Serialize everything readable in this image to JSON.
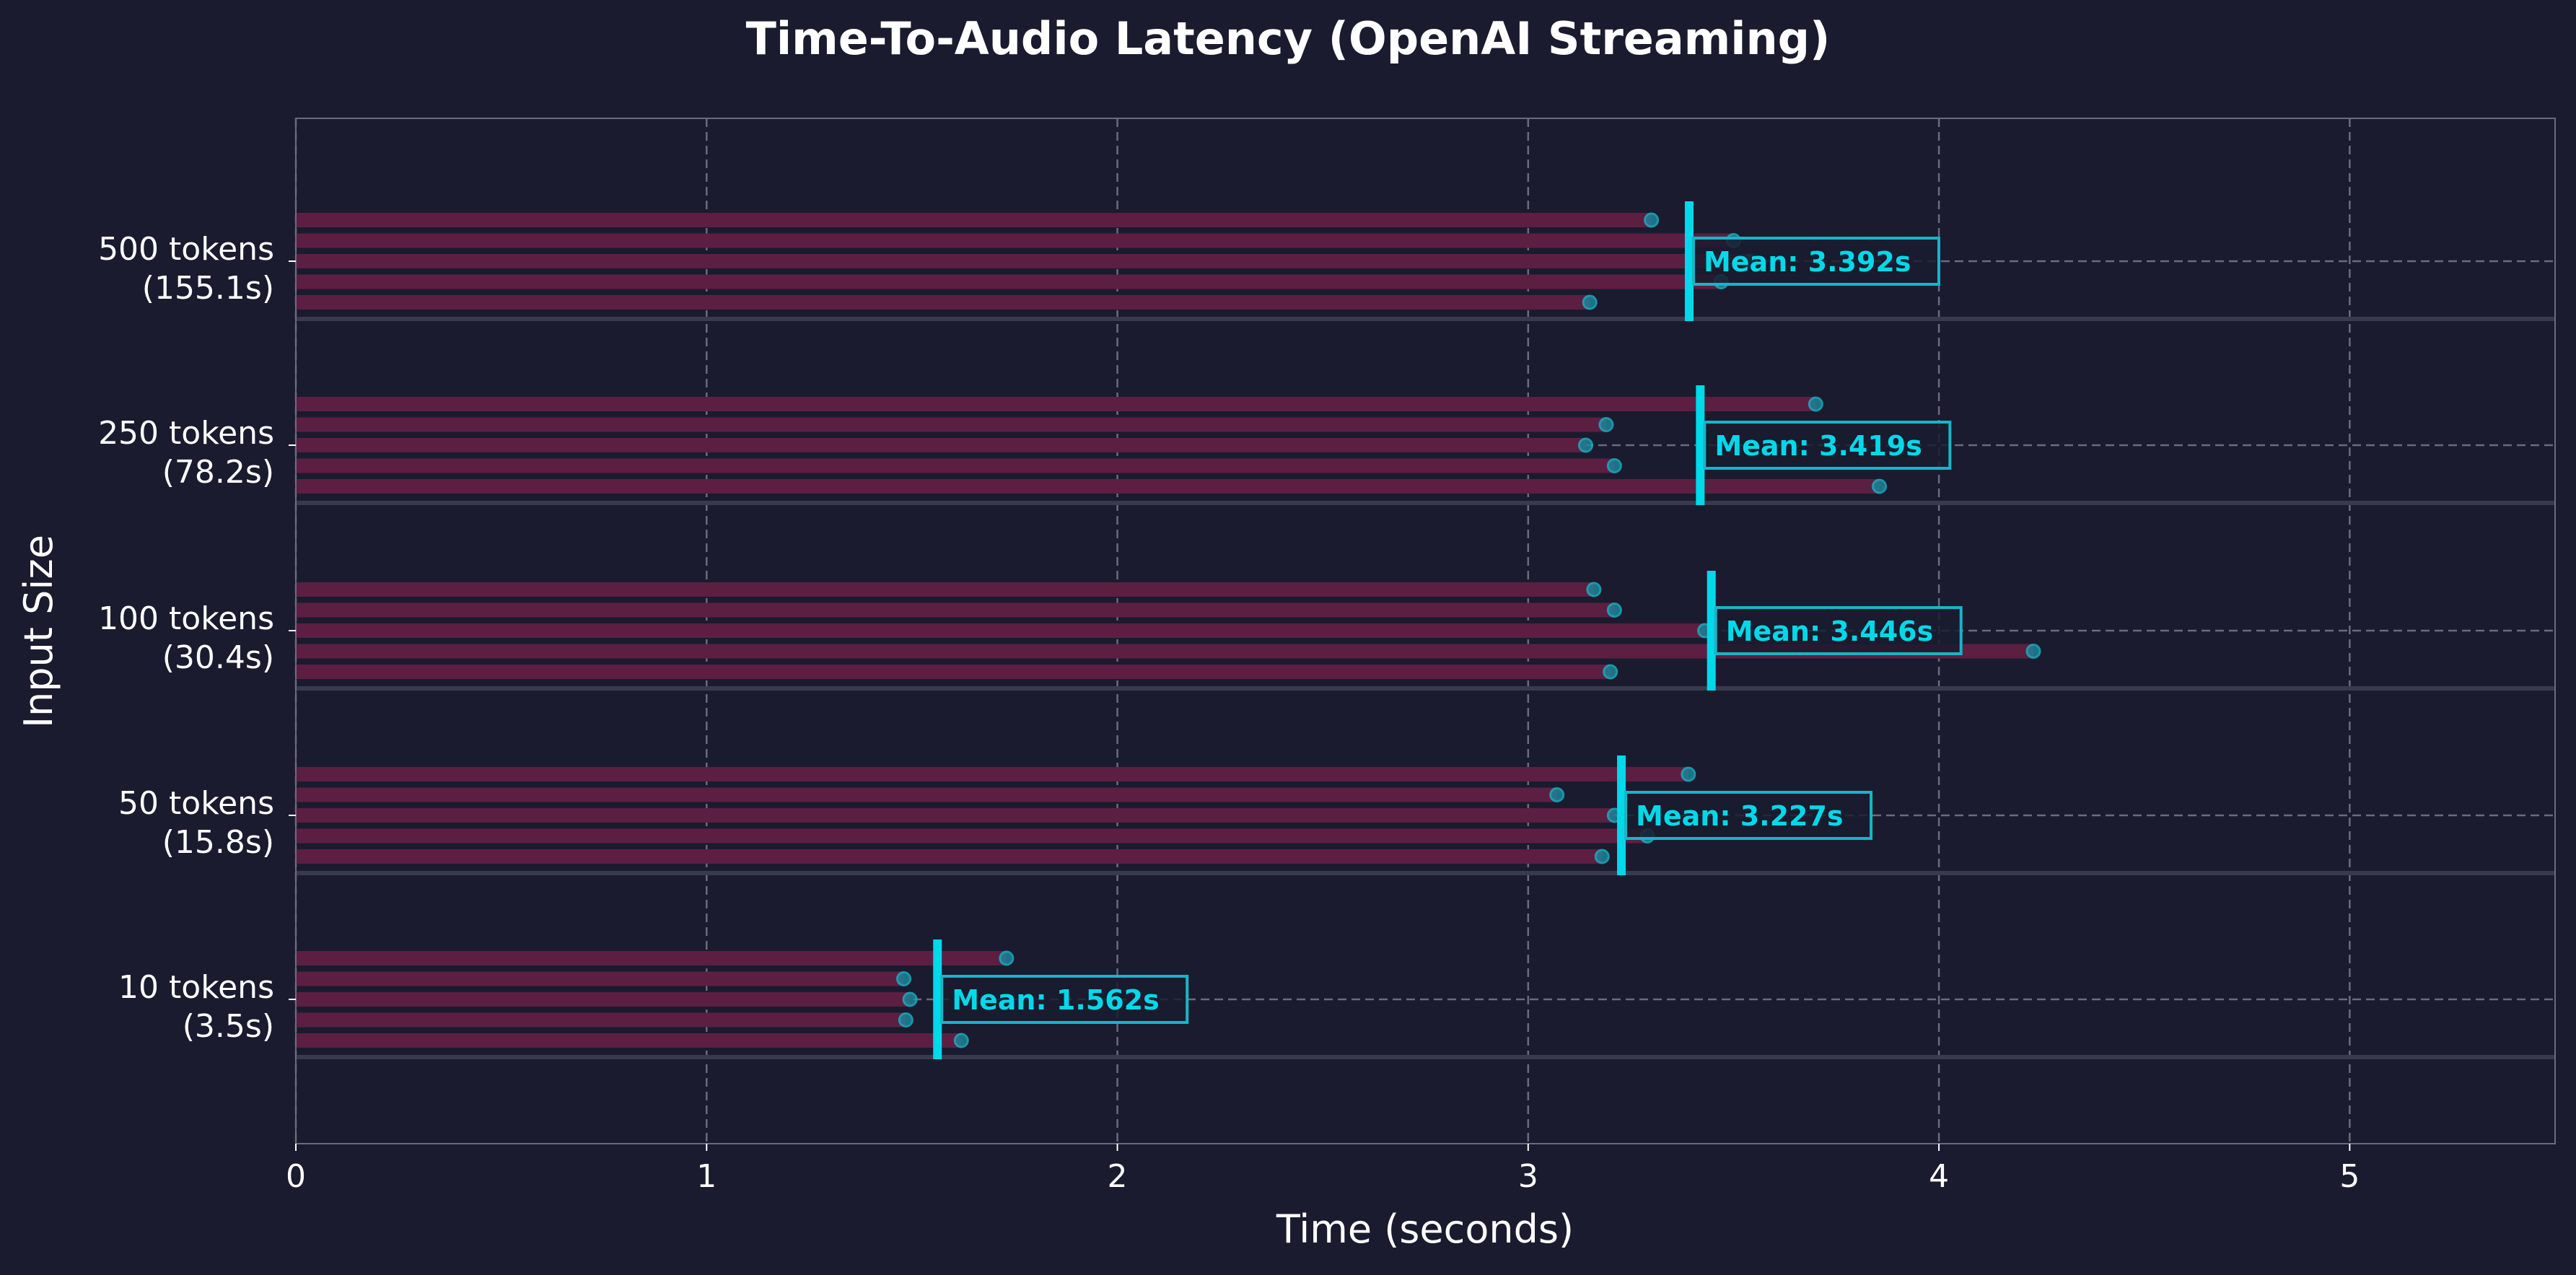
{
  "chart_data": {
    "type": "bar",
    "orientation": "horizontal",
    "title": "Time-To-Audio Latency (OpenAI Streaming)",
    "xlabel": "Time (seconds)",
    "ylabel": "Input Size",
    "xlim": [
      0,
      5.5
    ],
    "xticks": [
      "0",
      "1",
      "2",
      "3",
      "4",
      "5"
    ],
    "grid": true,
    "categories": [
      {
        "label": "500 tokens",
        "sub": "(155.1s)",
        "values": [
          3.3,
          3.5,
          3.54,
          3.47,
          3.15
        ],
        "mean": 3.392,
        "mean_label": "Mean: 3.392s"
      },
      {
        "label": "250 tokens",
        "sub": "(78.2s)",
        "values": [
          3.7,
          3.19,
          3.14,
          3.21,
          3.855
        ],
        "mean": 3.419,
        "mean_label": "Mean: 3.419s"
      },
      {
        "label": "100 tokens",
        "sub": "(30.4s)",
        "values": [
          3.16,
          3.21,
          3.43,
          4.23,
          3.2
        ],
        "mean": 3.446,
        "mean_label": "Mean: 3.446s"
      },
      {
        "label": "50 tokens",
        "sub": "(15.8s)",
        "values": [
          3.39,
          3.07,
          3.21,
          3.29,
          3.18
        ],
        "mean": 3.227,
        "mean_label": "Mean: 3.227s"
      },
      {
        "label": "10 tokens",
        "sub": "(3.5s)",
        "values": [
          1.73,
          1.48,
          1.495,
          1.485,
          1.62
        ],
        "mean": 1.562,
        "mean_label": "Mean: 1.562s"
      }
    ],
    "colors": {
      "background": "#1a1b2e",
      "bar": "#5c1f42",
      "dot": "#1b8a9c",
      "mean": "#00d9e9",
      "text": "#ffffff",
      "grid": "#6b6b7e"
    }
  }
}
